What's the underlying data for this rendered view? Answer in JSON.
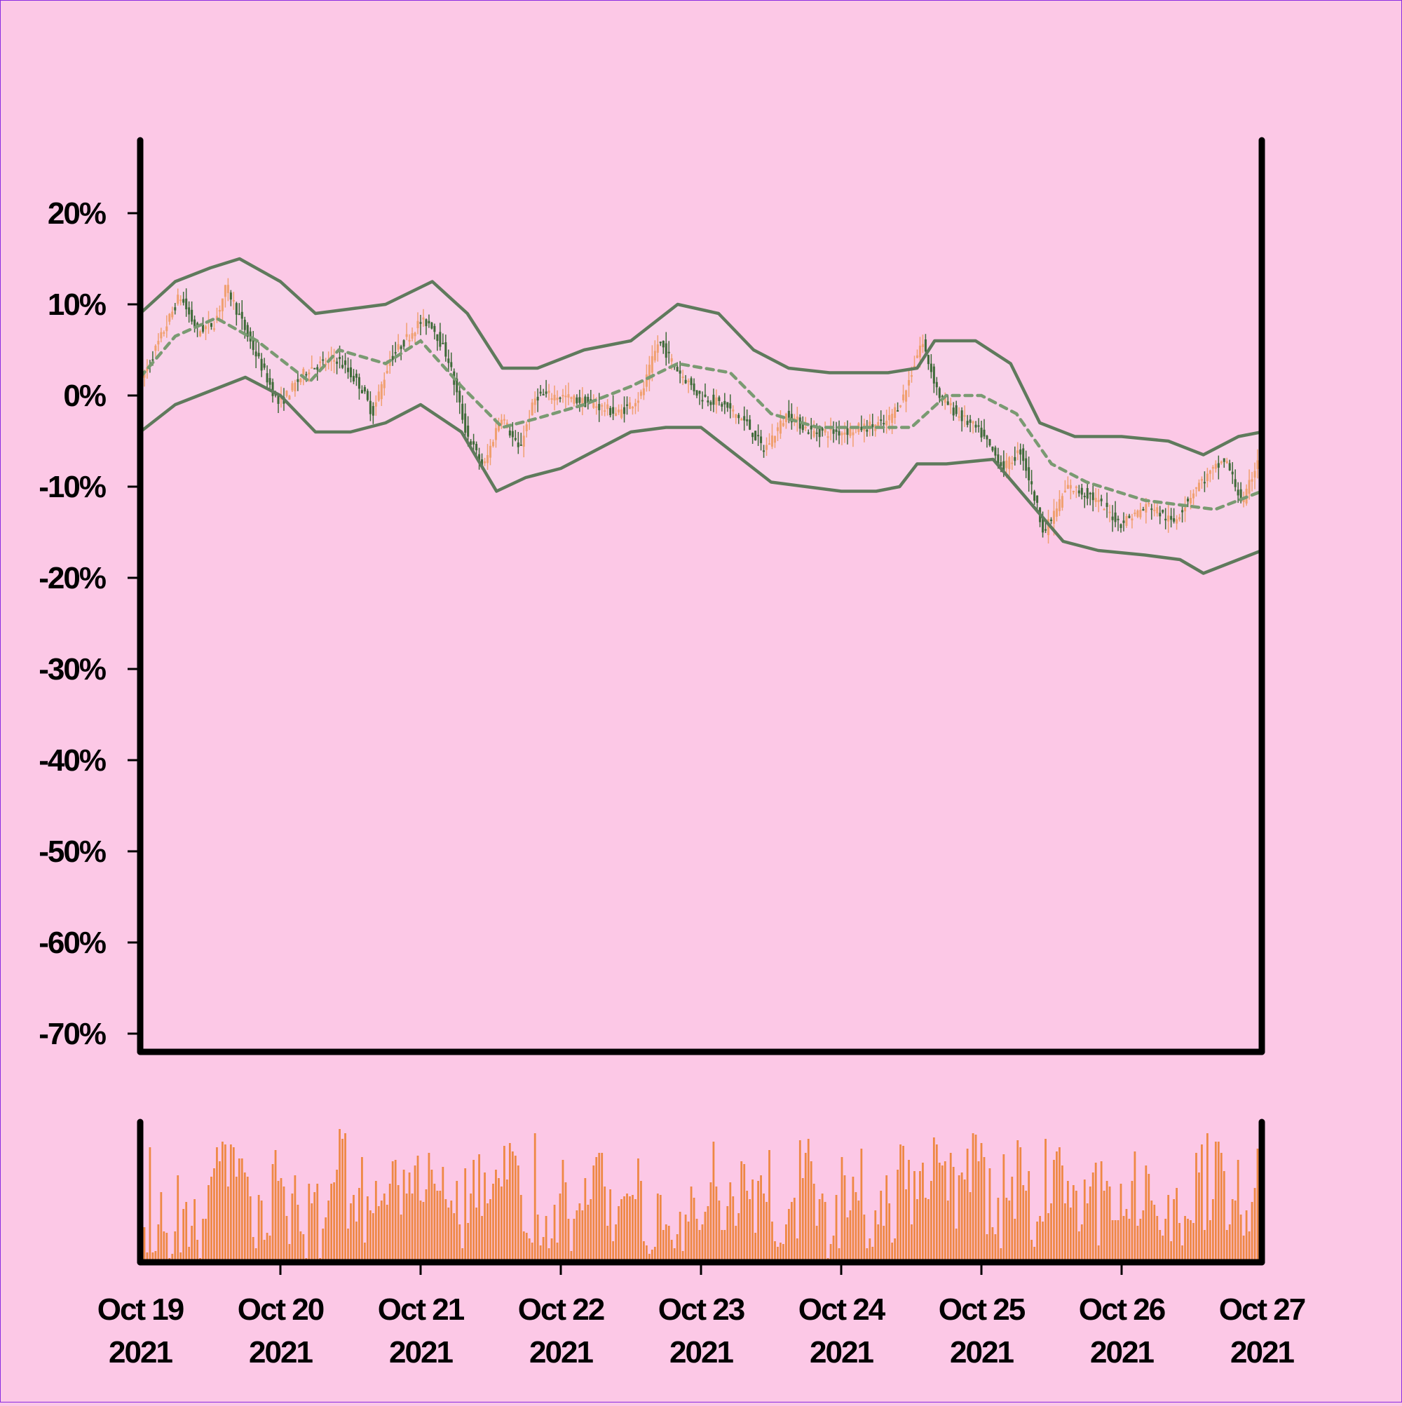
{
  "colors": {
    "background": "#fcc8e6",
    "up_candle": "#f0a070",
    "down_candle": "#3e6a38",
    "band_line": "#5f7a5c",
    "band_fill": "#f9d2ea",
    "mid_line": "#7a9a72",
    "volume": "#ee8844",
    "axis": "#000000"
  },
  "chart_data": {
    "type": "candlestick",
    "title": "",
    "xlabel": "",
    "ylabel": "",
    "y_unit": "%",
    "ylim": [
      -72,
      28
    ],
    "yticks": [
      20,
      10,
      0,
      -10,
      -20,
      -30,
      -40,
      -50,
      -60,
      -70
    ],
    "ytick_labels": [
      "20%",
      "10%",
      "0%",
      "-10%",
      "-20%",
      "-30%",
      "-40%",
      "-50%",
      "-60%",
      "-70%"
    ],
    "xlim": [
      "2021-10-19",
      "2021-10-27"
    ],
    "xtick_labels": [
      [
        "Oct 19",
        "2021"
      ],
      [
        "Oct 20",
        "2021"
      ],
      [
        "Oct 21",
        "2021"
      ],
      [
        "Oct 22",
        "2021"
      ],
      [
        "Oct 23",
        "2021"
      ],
      [
        "Oct 24",
        "2021"
      ],
      [
        "Oct 25",
        "2021"
      ],
      [
        "Oct 26",
        "2021"
      ],
      [
        "Oct 27",
        "2021"
      ]
    ],
    "grid": false,
    "legend": "none",
    "bars_per_day": 40,
    "price_path": [
      [
        "2021-10-19 00:00",
        1
      ],
      [
        "2021-10-19 07:00",
        11
      ],
      [
        "2021-10-19 10:00",
        7
      ],
      [
        "2021-10-19 13:00",
        8
      ],
      [
        "2021-10-19 15:00",
        12
      ],
      [
        "2021-10-19 19:00",
        6
      ],
      [
        "2021-10-20 00:00",
        -1
      ],
      [
        "2021-10-20 05:00",
        3
      ],
      [
        "2021-10-20 10:00",
        4
      ],
      [
        "2021-10-20 14:00",
        1
      ],
      [
        "2021-10-20 16:00",
        -2
      ],
      [
        "2021-10-20 19:00",
        4
      ],
      [
        "2021-10-21 00:00",
        8
      ],
      [
        "2021-10-21 02:00",
        8
      ],
      [
        "2021-10-21 05:00",
        4
      ],
      [
        "2021-10-21 08:00",
        -4
      ],
      [
        "2021-10-21 11:00",
        -8
      ],
      [
        "2021-10-21 14:00",
        -2
      ],
      [
        "2021-10-21 17:00",
        -6
      ],
      [
        "2021-10-21 20:00",
        0
      ],
      [
        "2021-10-22 00:00",
        0
      ],
      [
        "2021-10-22 06:00",
        -1
      ],
      [
        "2021-10-22 10:00",
        -2
      ],
      [
        "2021-10-22 14:00",
        0
      ],
      [
        "2021-10-22 17:00",
        6
      ],
      [
        "2021-10-22 20:00",
        3
      ],
      [
        "2021-10-23 00:00",
        0
      ],
      [
        "2021-10-23 04:00",
        -1
      ],
      [
        "2021-10-23 08:00",
        -3
      ],
      [
        "2021-10-23 11:00",
        -6
      ],
      [
        "2021-10-23 15:00",
        -2
      ],
      [
        "2021-10-23 19:00",
        -4
      ],
      [
        "2021-10-24 00:00",
        -4
      ],
      [
        "2021-10-24 08:00",
        -3
      ],
      [
        "2021-10-24 11:00",
        0
      ],
      [
        "2021-10-24 14:00",
        6
      ],
      [
        "2021-10-24 17:00",
        0
      ],
      [
        "2021-10-24 20:00",
        -2
      ],
      [
        "2021-10-25 00:00",
        -4
      ],
      [
        "2021-10-25 04:00",
        -8
      ],
      [
        "2021-10-25 07:00",
        -6
      ],
      [
        "2021-10-25 11:00",
        -15
      ],
      [
        "2021-10-25 15:00",
        -10
      ],
      [
        "2021-10-25 19:00",
        -11
      ],
      [
        "2021-10-26 00:00",
        -14
      ],
      [
        "2021-10-26 05:00",
        -12
      ],
      [
        "2021-10-26 09:00",
        -14
      ],
      [
        "2021-10-26 13:00",
        -10
      ],
      [
        "2021-10-26 18:00",
        -7
      ],
      [
        "2021-10-26 21:00",
        -12
      ],
      [
        "2021-10-27 00:00",
        -6
      ]
    ],
    "series": [
      {
        "type": "line",
        "style": "dashed",
        "x": [
          "2021-10-19 00:00",
          "2021-10-19 06:00",
          "2021-10-19 13:00",
          "2021-10-19 20:00",
          "2021-10-20 05:00",
          "2021-10-20 10:00",
          "2021-10-20 18:00",
          "2021-10-21 00:00",
          "2021-10-21 07:00",
          "2021-10-21 14:00",
          "2021-10-21 20:00",
          "2021-10-22 04:00",
          "2021-10-22 12:00",
          "2021-10-22 20:00",
          "2021-10-23 05:00",
          "2021-10-23 12:00",
          "2021-10-23 20:00",
          "2021-10-24 06:00",
          "2021-10-24 12:00",
          "2021-10-24 18:00",
          "2021-10-25 00:00",
          "2021-10-25 06:00",
          "2021-10-25 12:00",
          "2021-10-25 18:00",
          "2021-10-26 04:00",
          "2021-10-26 10:00",
          "2021-10-26 16:00",
          "2021-10-26 22:00",
          "2021-10-27 00:00"
        ],
        "values": [
          2,
          6.5,
          8.5,
          6,
          1.5,
          5,
          3.5,
          6,
          1,
          -3.5,
          -2.5,
          -1,
          1,
          3.5,
          2.5,
          -2,
          -3.5,
          -3.5,
          -3.5,
          0,
          0,
          -2,
          -7.5,
          -9.5,
          -11.5,
          -12,
          -12.5,
          -11,
          -10.5
        ]
      },
      {
        "type": "line",
        "style": "solid",
        "x": [
          "2021-10-19 00:00",
          "2021-10-19 06:00",
          "2021-10-19 12:00",
          "2021-10-19 17:00",
          "2021-10-20 00:00",
          "2021-10-20 06:00",
          "2021-10-20 12:00",
          "2021-10-20 18:00",
          "2021-10-21 02:00",
          "2021-10-21 08:00",
          "2021-10-21 14:00",
          "2021-10-21 20:00",
          "2021-10-22 04:00",
          "2021-10-22 12:00",
          "2021-10-22 20:00",
          "2021-10-23 03:00",
          "2021-10-23 09:00",
          "2021-10-23 15:00",
          "2021-10-23 22:00",
          "2021-10-24 08:00",
          "2021-10-24 13:00",
          "2021-10-24 16:00",
          "2021-10-24 23:00",
          "2021-10-25 05:00",
          "2021-10-25 10:00",
          "2021-10-25 16:00",
          "2021-10-26 00:00",
          "2021-10-26 08:00",
          "2021-10-26 14:00",
          "2021-10-26 20:00",
          "2021-10-27 00:00"
        ],
        "values": [
          9,
          12.5,
          14,
          15,
          12.5,
          9,
          9.5,
          10,
          12.5,
          9,
          3,
          3,
          5,
          6,
          10,
          9,
          5,
          3,
          2.5,
          2.5,
          3,
          6,
          6,
          3.5,
          -3,
          -4.5,
          -4.5,
          -5,
          -6.5,
          -4.5,
          -4
        ]
      },
      {
        "type": "line",
        "style": "solid",
        "x": [
          "2021-10-19 00:00",
          "2021-10-19 06:00",
          "2021-10-19 12:00",
          "2021-10-19 18:00",
          "2021-10-20 00:00",
          "2021-10-20 06:00",
          "2021-10-20 12:00",
          "2021-10-20 18:00",
          "2021-10-21 00:00",
          "2021-10-21 07:00",
          "2021-10-21 13:00",
          "2021-10-21 18:00",
          "2021-10-22 00:00",
          "2021-10-22 06:00",
          "2021-10-22 12:00",
          "2021-10-22 18:00",
          "2021-10-23 00:00",
          "2021-10-23 06:00",
          "2021-10-23 12:00",
          "2021-10-23 18:00",
          "2021-10-24 00:00",
          "2021-10-24 06:00",
          "2021-10-24 10:00",
          "2021-10-24 13:00",
          "2021-10-24 18:00",
          "2021-10-25 02:00",
          "2021-10-25 08:00",
          "2021-10-25 14:00",
          "2021-10-25 20:00",
          "2021-10-26 04:00",
          "2021-10-26 10:00",
          "2021-10-26 14:00",
          "2021-10-26 20:00",
          "2021-10-27 00:00"
        ],
        "values": [
          -4,
          -1,
          0.5,
          2,
          0,
          -4,
          -4,
          -3,
          -1,
          -4,
          -10.5,
          -9,
          -8,
          -6,
          -4,
          -3.5,
          -3.5,
          -6.5,
          -9.5,
          -10,
          -10.5,
          -10.5,
          -10,
          -7.5,
          -7.5,
          -7,
          -11.5,
          -16,
          -17,
          -17.5,
          -18,
          -19.5,
          -18,
          -17
        ]
      }
    ],
    "volume": {
      "ylim": [
        0,
        100
      ],
      "values": [
        15,
        25,
        7,
        82,
        7,
        8,
        27,
        50,
        22,
        21,
        3,
        6,
        22,
        62,
        7,
        38,
        43,
        11,
        26,
        45,
        16,
        3,
        31,
        31,
        55,
        61,
        67,
        82,
        72,
        86,
        84,
        54,
        84,
        82,
        61,
        74,
        74,
        64,
        61,
        47,
        18,
        10,
        48,
        44,
        16,
        21,
        19,
        70,
        80,
        58,
        60,
        54,
        33,
        13,
        49,
        62,
        41,
        22,
        20,
        3,
        56,
        42,
        50,
        56,
        3,
        24,
        32,
        44,
        56,
        57,
        66,
        95,
        88,
        92,
        24,
        42,
        48,
        29,
        53,
        75,
        14,
        47,
        37,
        35,
        58,
        40,
        44,
        49,
        41,
        56,
        72,
        73,
        55,
        34,
        66,
        49,
        64,
        49,
        69,
        76,
        44,
        43,
        52,
        78,
        66,
        56,
        51,
        51,
        68,
        45,
        39,
        44,
        35,
        58,
        27,
        10,
        67,
        28,
        49,
        73,
        39,
        77,
        33,
        64,
        42,
        45,
        56,
        66,
        60,
        54,
        83,
        59,
        85,
        79,
        76,
        69,
        48,
        22,
        21,
        17,
        14,
        92,
        34,
        12,
        18,
        33,
        10,
        17,
        41,
        14,
        49,
        73,
        57,
        31,
        8,
        31,
        37,
        42,
        37,
        60,
        41,
        45,
        69,
        75,
        78,
        78,
        54,
        26,
        52,
        15,
        27,
        40,
        45,
        47,
        49,
        47,
        48,
        45,
        74,
        58,
        15,
        12,
        6,
        9,
        11,
        49,
        48,
        23,
        27,
        26,
        16,
        10,
        20,
        36,
        8,
        34,
        29,
        54,
        46,
        31,
        23,
        27,
        36,
        40,
        57,
        86,
        54,
        44,
        23,
        23,
        40,
        57,
        47,
        26,
        35,
        72,
        70,
        51,
        45,
        59,
        21,
        58,
        62,
        49,
        43,
        80,
        29,
        15,
        11,
        14,
        13,
        27,
        38,
        43,
        46,
        17,
        87,
        60,
        78,
        88,
        72,
        56,
        26,
        45,
        49,
        43,
        3,
        13,
        19,
        48,
        10,
        75,
        62,
        32,
        37,
        61,
        50,
        44,
        81,
        34,
        10,
        17,
        11,
        37,
        27,
        51,
        26,
        62,
        42,
        14,
        17,
        66,
        84,
        83,
        52,
        73,
        27,
        65,
        45,
        65,
        71,
        46,
        45,
        58,
        89,
        84,
        71,
        69,
        72,
        44,
        78,
        68,
        24,
        62,
        64,
        59,
        81,
        50,
        92,
        91,
        72,
        85,
        75,
        20,
        67,
        25,
        20,
        46,
        10,
        77,
        46,
        44,
        61,
        31,
        87,
        82,
        55,
        51,
        65,
        16,
        11,
        29,
        33,
        29,
        88,
        35,
        42,
        73,
        79,
        82,
        69,
        42,
        58,
        39,
        55,
        51,
        22,
        27,
        59,
        42,
        54,
        64,
        71,
        12,
        72,
        51,
        58,
        54,
        30,
        30,
        30,
        56,
        33,
        38,
        31,
        58,
        79,
        26,
        31,
        37,
        69,
        63,
        44,
        41,
        33,
        23,
        19,
        31,
        48,
        15,
        45,
        53,
        28,
        12,
        33,
        31,
        30,
        28,
        78,
        64,
        84,
        23,
        92,
        30,
        45,
        86,
        86,
        78,
        65,
        23,
        27,
        45,
        44,
        73,
        34,
        19,
        37,
        22,
        43,
        53,
        81,
        62
      ]
    }
  }
}
